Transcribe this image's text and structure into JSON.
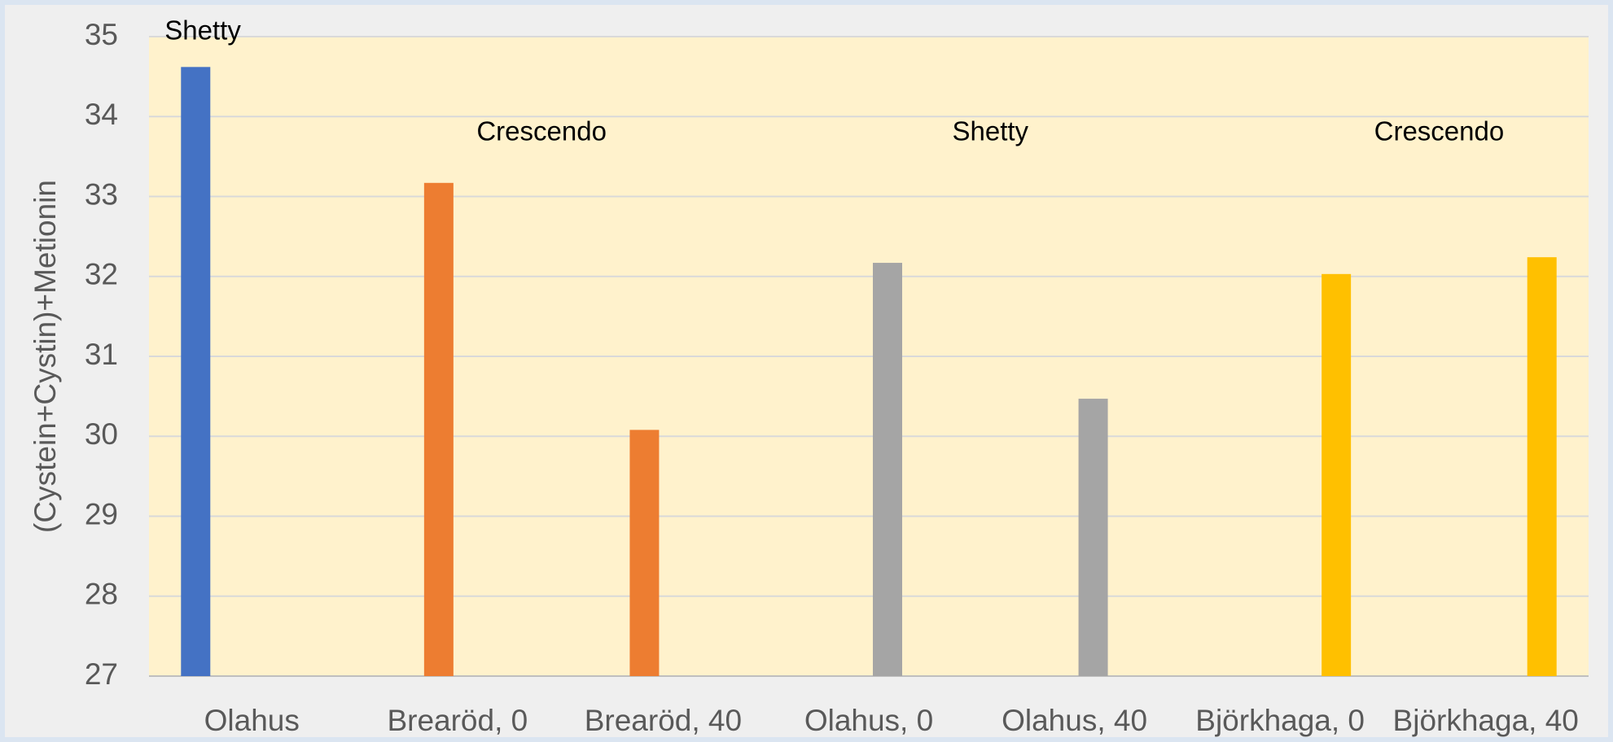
{
  "chart_data": {
    "type": "bar",
    "y_label": "(Cystein+Cystin)+Metionin",
    "categories": [
      "Olahus",
      "Brearöd, 0",
      "Brearöd, 40",
      "Olahus, 0",
      "Olahus, 40",
      "Björkhaga, 0",
      "Björkhaga, 40"
    ],
    "series": [
      {
        "name": "Shetty",
        "color": "#4472c4",
        "values": [
          34.62,
          null,
          null,
          null,
          null,
          null,
          null
        ]
      },
      {
        "name": "Crescendo",
        "color": "#ed7d31",
        "values": [
          null,
          33.17,
          30.08,
          null,
          null,
          null,
          null
        ]
      },
      {
        "name": "Shetty",
        "color": "#a5a5a5",
        "values": [
          null,
          null,
          null,
          32.17,
          30.47,
          null,
          null
        ]
      },
      {
        "name": "Crescendo",
        "color": "#ffc000",
        "values": [
          null,
          null,
          null,
          null,
          null,
          32.03,
          32.24
        ]
      }
    ],
    "ylim": [
      27,
      35
    ],
    "yticks": [
      27,
      28,
      29,
      30,
      31,
      32,
      33,
      34,
      35
    ],
    "grid": true
  }
}
